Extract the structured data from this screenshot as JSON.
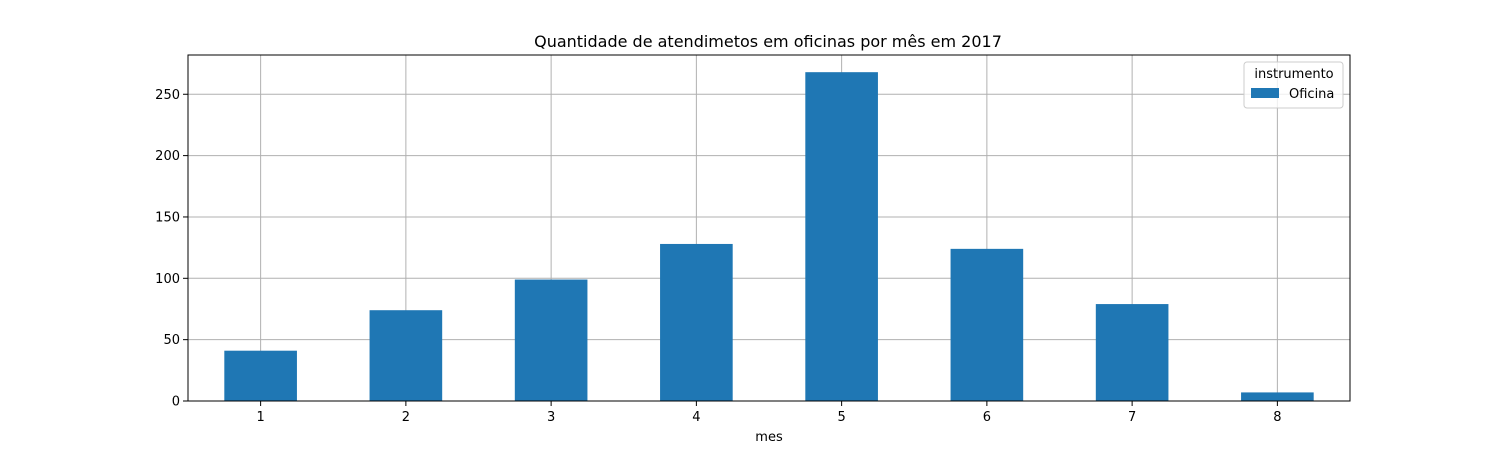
{
  "chart_data": {
    "type": "bar",
    "title": "Quantidade de atendimetos em oficinas por mês em 2017",
    "xlabel": "mes",
    "ylabel": "",
    "categories": [
      "1",
      "2",
      "3",
      "4",
      "5",
      "6",
      "7",
      "8"
    ],
    "series": [
      {
        "name": "Oficina",
        "values": [
          41,
          74,
          99,
          128,
          268,
          124,
          79,
          7
        ],
        "color": "#1f77b4"
      }
    ],
    "ylim": [
      0,
      282
    ],
    "yticks": [
      0,
      50,
      100,
      150,
      200,
      250
    ],
    "grid": true,
    "legend": {
      "title": "instrumento",
      "placement": "top-right"
    }
  }
}
